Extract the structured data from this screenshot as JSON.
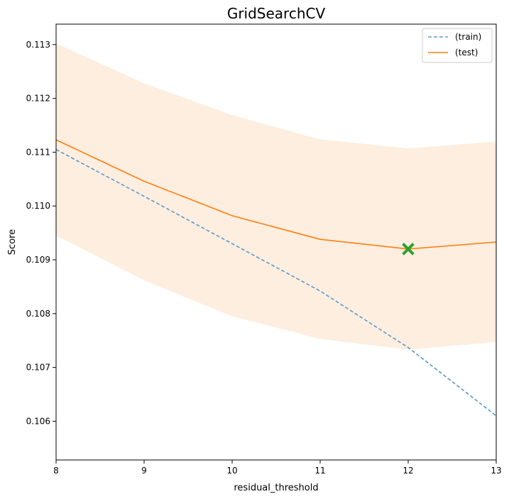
{
  "chart_data": {
    "type": "line",
    "title": "GridSearchCV",
    "xlabel": "residual_threshold",
    "ylabel": "Score",
    "x": [
      8,
      9,
      10,
      11,
      12,
      13
    ],
    "xlim": [
      8,
      13
    ],
    "ylim": [
      0.10528,
      0.11338
    ],
    "xticks": [
      "8",
      "9",
      "10",
      "11",
      "12",
      "13"
    ],
    "yticks": [
      "0.106",
      "0.107",
      "0.108",
      "0.109",
      "0.110",
      "0.111",
      "0.112",
      "0.113"
    ],
    "grid": false,
    "legend_position": "upper right",
    "series": [
      {
        "name": "(train)",
        "values": [
          0.11105,
          0.11018,
          0.1093,
          0.10842,
          0.10737,
          0.1061
        ],
        "color": "#5b9ac9",
        "style": "dashed"
      },
      {
        "name": "(test)",
        "values": [
          0.11123,
          0.11046,
          0.10982,
          0.10938,
          0.1092,
          0.10933
        ],
        "color": "#ff7f0e",
        "style": "solid",
        "band_lower": [
          0.10945,
          0.10862,
          0.10795,
          0.10753,
          0.10733,
          0.10747
        ],
        "band_upper": [
          0.11302,
          0.11228,
          0.11169,
          0.11124,
          0.11107,
          0.1112
        ],
        "band_color": "#fdeee0"
      }
    ],
    "best_marker": {
      "x": 12,
      "y": 0.1092,
      "color": "#2ca02c",
      "symbol": "X"
    }
  }
}
